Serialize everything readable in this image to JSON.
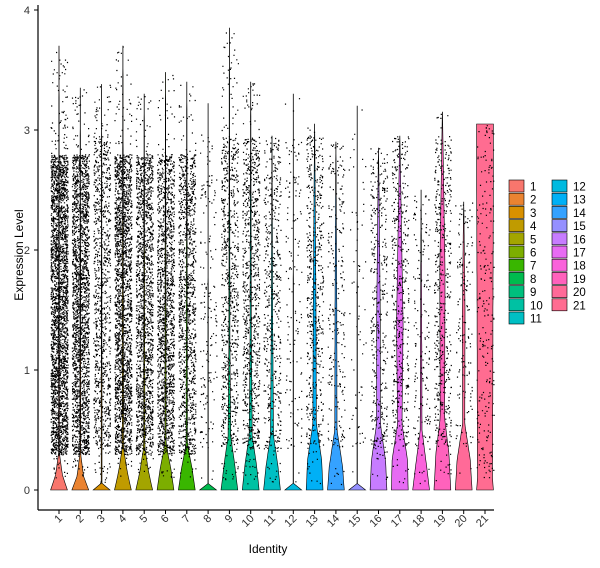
{
  "chart_data": {
    "type": "violin",
    "xlabel": "Identity",
    "ylabel": "Expression Level",
    "ylim": [
      -0.2,
      4.05
    ],
    "yticks": [
      0,
      1,
      2,
      3,
      4
    ],
    "grid": false,
    "legend_position": "right",
    "legend_columns": 2,
    "categories": [
      "1",
      "2",
      "3",
      "4",
      "5",
      "6",
      "7",
      "8",
      "9",
      "10",
      "11",
      "12",
      "13",
      "14",
      "15",
      "16",
      "17",
      "18",
      "19",
      "20",
      "21"
    ],
    "colors": [
      "#F8766D",
      "#EA8331",
      "#D89000",
      "#C09B00",
      "#A3A500",
      "#7CAE00",
      "#39B600",
      "#00BB4E",
      "#00BF7D",
      "#00C1A3",
      "#00BFC4",
      "#00BAE0",
      "#00B0F6",
      "#35A2FF",
      "#9590FF",
      "#C77CFF",
      "#E76BF3",
      "#FA62DB",
      "#FF62BC",
      "#FF6A98",
      "#FF6C91"
    ],
    "series": [
      {
        "name": "1",
        "max": 3.7,
        "dots": 2600,
        "profile": [
          [
            0,
            0.38
          ],
          [
            0.12,
            0.16
          ],
          [
            0.3,
            0.02
          ],
          [
            3.7,
            0.005
          ]
        ]
      },
      {
        "name": "2",
        "max": 3.35,
        "dots": 2000,
        "profile": [
          [
            0,
            0.38
          ],
          [
            0.12,
            0.14
          ],
          [
            0.3,
            0.02
          ],
          [
            3.35,
            0.005
          ]
        ]
      },
      {
        "name": "3",
        "max": 3.38,
        "dots": 950,
        "profile": [
          [
            0,
            0.38
          ],
          [
            0.05,
            0.02
          ],
          [
            3.38,
            0.005
          ]
        ]
      },
      {
        "name": "4",
        "max": 3.7,
        "dots": 2000,
        "profile": [
          [
            0,
            0.38
          ],
          [
            0.15,
            0.2
          ],
          [
            0.35,
            0.03
          ],
          [
            3.7,
            0.005
          ]
        ]
      },
      {
        "name": "5",
        "max": 3.3,
        "dots": 1500,
        "profile": [
          [
            0,
            0.38
          ],
          [
            0.15,
            0.2
          ],
          [
            0.35,
            0.03
          ],
          [
            3.3,
            0.005
          ]
        ]
      },
      {
        "name": "6",
        "max": 3.48,
        "dots": 1500,
        "profile": [
          [
            0,
            0.38
          ],
          [
            0.18,
            0.24
          ],
          [
            0.38,
            0.03
          ],
          [
            3.48,
            0.005
          ]
        ]
      },
      {
        "name": "7",
        "max": 3.4,
        "dots": 1150,
        "profile": [
          [
            0,
            0.38
          ],
          [
            0.18,
            0.24
          ],
          [
            0.38,
            0.03
          ],
          [
            3.4,
            0.005
          ]
        ]
      },
      {
        "name": "8",
        "max": 3.22,
        "dots": 170,
        "profile": [
          [
            0,
            0.38
          ],
          [
            0.05,
            0.01
          ],
          [
            3.22,
            0.004
          ]
        ]
      },
      {
        "name": "9",
        "max": 3.85,
        "dots": 750,
        "profile": [
          [
            0,
            0.38
          ],
          [
            0.2,
            0.25
          ],
          [
            0.45,
            0.06
          ],
          [
            1.2,
            0.025
          ],
          [
            3.85,
            0.004
          ]
        ]
      },
      {
        "name": "10",
        "max": 3.4,
        "dots": 850,
        "profile": [
          [
            0,
            0.38
          ],
          [
            0.2,
            0.27
          ],
          [
            0.45,
            0.07
          ],
          [
            1.3,
            0.03
          ],
          [
            3.4,
            0.004
          ]
        ]
      },
      {
        "name": "11",
        "max": 2.95,
        "dots": 480,
        "profile": [
          [
            0,
            0.38
          ],
          [
            0.2,
            0.27
          ],
          [
            0.45,
            0.07
          ],
          [
            1.4,
            0.03
          ],
          [
            2.95,
            0.004
          ]
        ]
      },
      {
        "name": "12",
        "max": 3.3,
        "dots": 140,
        "profile": [
          [
            0,
            0.38
          ],
          [
            0.05,
            0.01
          ],
          [
            3.3,
            0.004
          ]
        ]
      },
      {
        "name": "13",
        "max": 3.05,
        "dots": 520,
        "profile": [
          [
            0,
            0.38
          ],
          [
            0.25,
            0.32
          ],
          [
            0.55,
            0.08
          ],
          [
            1.6,
            0.06
          ],
          [
            3.05,
            0.004
          ]
        ]
      },
      {
        "name": "14",
        "max": 2.9,
        "dots": 240,
        "profile": [
          [
            0,
            0.38
          ],
          [
            0.2,
            0.3
          ],
          [
            0.5,
            0.05
          ],
          [
            1.5,
            0.04
          ],
          [
            2.9,
            0.004
          ]
        ]
      },
      {
        "name": "15",
        "max": 3.2,
        "dots": 70,
        "profile": [
          [
            0,
            0.38
          ],
          [
            0.05,
            0.01
          ],
          [
            3.2,
            0.004
          ]
        ]
      },
      {
        "name": "16",
        "max": 2.85,
        "dots": 380,
        "profile": [
          [
            0,
            0.38
          ],
          [
            0.25,
            0.32
          ],
          [
            0.55,
            0.09
          ],
          [
            1.5,
            0.08
          ],
          [
            2.85,
            0.004
          ]
        ]
      },
      {
        "name": "17",
        "max": 2.95,
        "dots": 450,
        "profile": [
          [
            0,
            0.38
          ],
          [
            0.25,
            0.35
          ],
          [
            0.55,
            0.1
          ],
          [
            1.4,
            0.15
          ],
          [
            2.95,
            0.004
          ]
        ]
      },
      {
        "name": "18",
        "max": 2.5,
        "dots": 170,
        "profile": [
          [
            0,
            0.38
          ],
          [
            0.2,
            0.25
          ],
          [
            0.5,
            0.04
          ],
          [
            1.2,
            0.03
          ],
          [
            2.5,
            0.004
          ]
        ]
      },
      {
        "name": "19",
        "max": 3.15,
        "dots": 480,
        "profile": [
          [
            0,
            0.38
          ],
          [
            0.3,
            0.3
          ],
          [
            0.6,
            0.1
          ],
          [
            1.8,
            0.12
          ],
          [
            3.15,
            0.004
          ]
        ]
      },
      {
        "name": "20",
        "max": 2.4,
        "dots": 150,
        "profile": [
          [
            0,
            0.38
          ],
          [
            0.25,
            0.3
          ],
          [
            0.55,
            0.05
          ],
          [
            1.5,
            0.06
          ],
          [
            2.4,
            0.004
          ]
        ]
      },
      {
        "name": "21",
        "max": 3.05,
        "dots": 230,
        "profile": [
          [
            0,
            0.38
          ],
          [
            0.1,
            0.34
          ],
          [
            0.5,
            0.35
          ],
          [
            1.5,
            0.36
          ],
          [
            2.5,
            0.38
          ],
          [
            3.05,
            0.38
          ]
        ]
      }
    ]
  }
}
